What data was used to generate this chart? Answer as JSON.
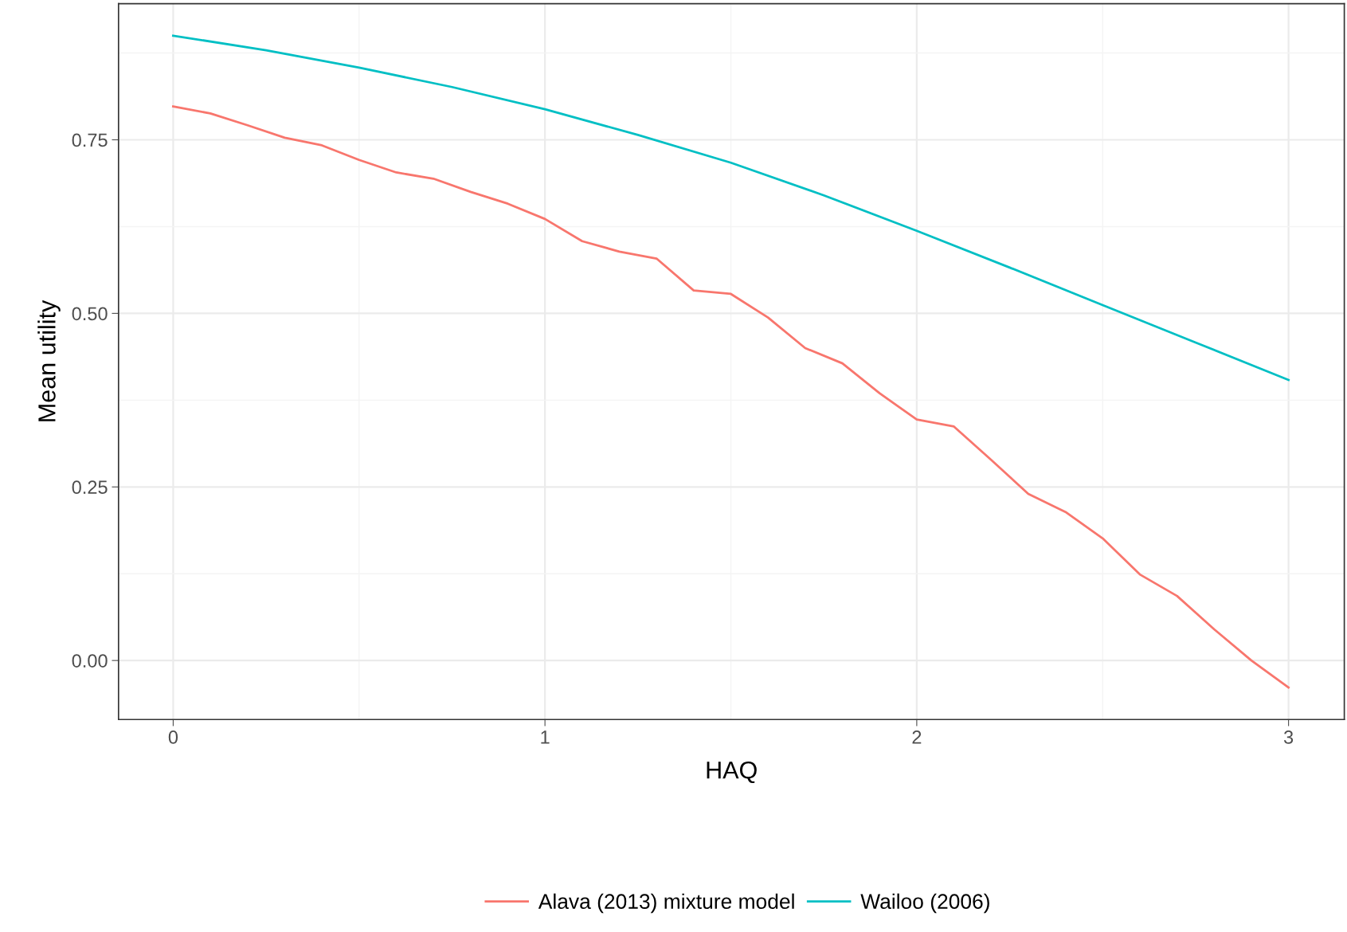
{
  "chart_data": {
    "type": "line",
    "xlabel": "HAQ",
    "ylabel": "Mean utility",
    "xlim": [
      -0.147,
      3.15
    ],
    "ylim": [
      -0.085,
      0.946
    ],
    "xticks": [
      0,
      1,
      2,
      3
    ],
    "yticks": [
      {
        "value": 0,
        "label": "0.00"
      },
      {
        "value": 0.25,
        "label": "0.25"
      },
      {
        "value": 0.5,
        "label": "0.50"
      },
      {
        "value": 0.75,
        "label": "0.75"
      }
    ],
    "grid": true,
    "legend": "bottom",
    "marker": "none",
    "line_style": "solid",
    "series": [
      {
        "name": "Alava (2013) mixture model",
        "color": "#f8766d",
        "x": [
          0,
          0.1,
          0.2,
          0.3,
          0.4,
          0.5,
          0.6,
          0.7,
          0.8,
          0.9,
          1.0,
          1.1,
          1.2,
          1.3,
          1.4,
          1.5,
          1.6,
          1.7,
          1.8,
          1.9,
          2.0,
          2.1,
          2.2,
          2.3,
          2.4,
          2.5,
          2.6,
          2.7,
          2.8,
          2.9,
          3.0
        ],
        "values": [
          0.798,
          0.788,
          0.771,
          0.753,
          0.742,
          0.721,
          0.703,
          0.694,
          0.675,
          0.658,
          0.636,
          0.604,
          0.589,
          0.579,
          0.533,
          0.528,
          0.494,
          0.45,
          0.428,
          0.385,
          0.347,
          0.337,
          0.289,
          0.24,
          0.214,
          0.176,
          0.124,
          0.093,
          0.045,
          0.0,
          -0.039
        ]
      },
      {
        "name": "Wailoo (2006)",
        "color": "#00bfc4",
        "x": [
          0,
          0.25,
          0.5,
          0.75,
          1.0,
          1.25,
          1.5,
          1.75,
          2.0,
          2.25,
          2.5,
          2.75,
          3.0
        ],
        "values": [
          0.9,
          0.879,
          0.854,
          0.826,
          0.794,
          0.757,
          0.717,
          0.67,
          0.619,
          0.566,
          0.512,
          0.458,
          0.404
        ]
      }
    ]
  }
}
